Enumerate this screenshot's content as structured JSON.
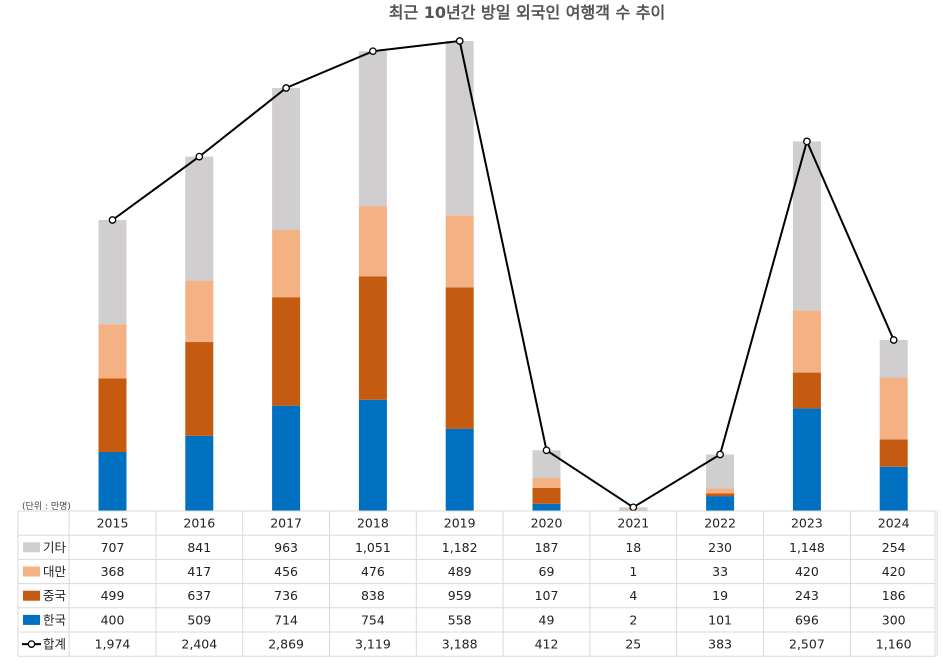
{
  "chart_data": {
    "type": "bar",
    "title": "최근 10년간 방일 외국인 여행객 수 추이",
    "unit_label": "(단위 : 만명)",
    "categories": [
      "2015",
      "2016",
      "2017",
      "2018",
      "2019",
      "2020",
      "2021",
      "2022",
      "2023",
      "2024"
    ],
    "series": [
      {
        "name": "한국",
        "kind": "bar",
        "color": "#0070c0",
        "values": [
          400,
          509,
          714,
          754,
          558,
          49,
          2,
          101,
          696,
          300
        ]
      },
      {
        "name": "중국",
        "kind": "bar",
        "color": "#c55a11",
        "values": [
          499,
          637,
          736,
          838,
          959,
          107,
          4,
          19,
          243,
          186
        ]
      },
      {
        "name": "대만",
        "kind": "bar",
        "color": "#f4b183",
        "values": [
          368,
          417,
          456,
          476,
          489,
          69,
          1,
          33,
          420,
          420
        ]
      },
      {
        "name": "기타",
        "kind": "bar",
        "color": "#d0cece",
        "values": [
          707,
          841,
          963,
          1051,
          1182,
          187,
          18,
          230,
          1148,
          254
        ]
      },
      {
        "name": "합계",
        "kind": "line",
        "color": "#000000",
        "values": [
          1974,
          2404,
          2869,
          3119,
          3188,
          412,
          25,
          383,
          2507,
          1160
        ]
      }
    ],
    "table_rows": [
      {
        "name": "기타",
        "cells": [
          "707",
          "841",
          "963",
          "1,051",
          "1,182",
          "187",
          "18",
          "230",
          "1,148",
          "254"
        ]
      },
      {
        "name": "대만",
        "cells": [
          "368",
          "417",
          "456",
          "476",
          "489",
          "69",
          "1",
          "33",
          "420",
          "420"
        ]
      },
      {
        "name": "중국",
        "cells": [
          "499",
          "637",
          "736",
          "838",
          "959",
          "107",
          "4",
          "19",
          "243",
          "186"
        ]
      },
      {
        "name": "한국",
        "cells": [
          "400",
          "509",
          "714",
          "754",
          "558",
          "49",
          "2",
          "101",
          "696",
          "300"
        ]
      },
      {
        "name": "합계",
        "cells": [
          "1,974",
          "2,404",
          "2,869",
          "3,119",
          "3,188",
          "412",
          "25",
          "383",
          "2,507",
          "1,160"
        ]
      }
    ],
    "ylim": [
      0,
      3200
    ],
    "grid": false,
    "stacked": true
  }
}
